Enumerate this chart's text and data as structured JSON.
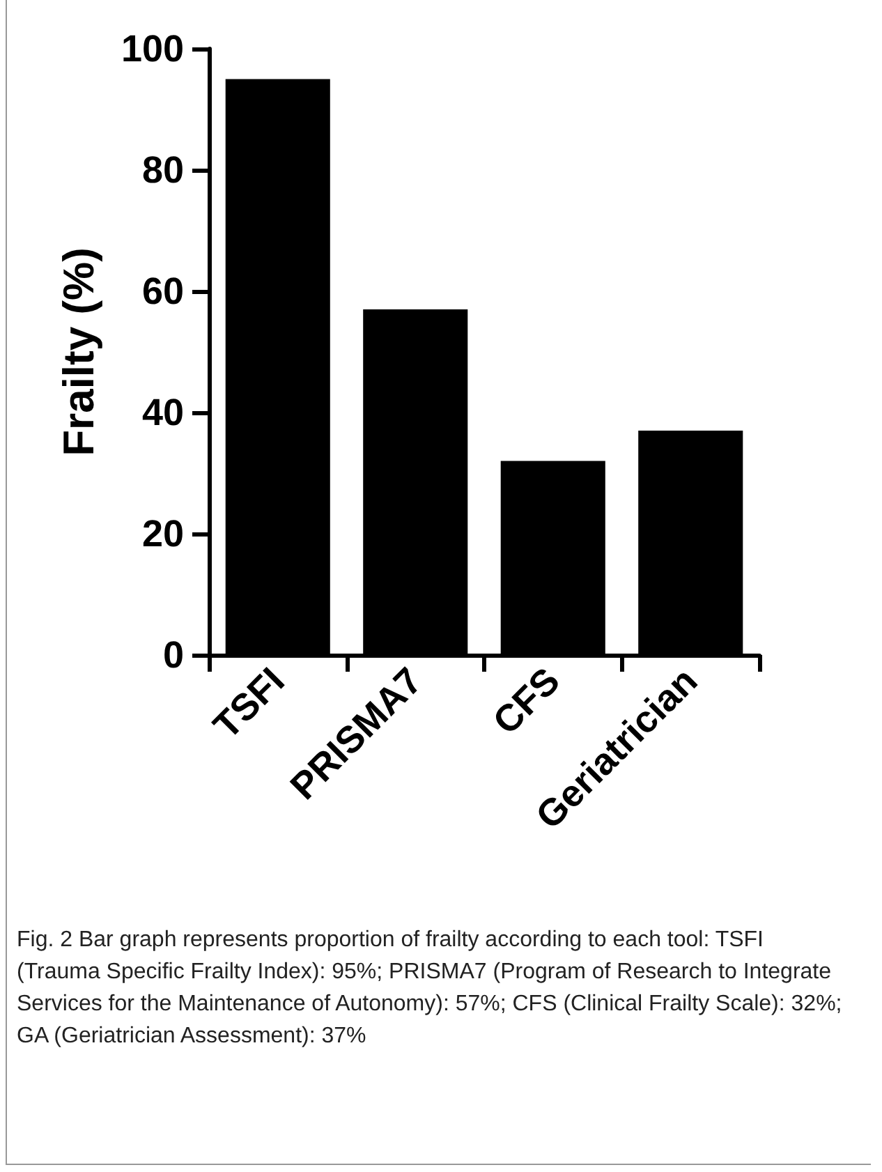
{
  "chart_data": {
    "type": "bar",
    "ylabel": "Frailty (%)",
    "categories": [
      "TSFI",
      "PRISMA7",
      "CFS",
      "Geriatrician"
    ],
    "values": [
      95,
      57,
      32,
      37
    ],
    "color": "#000000",
    "ylim": [
      0,
      100
    ],
    "yticks": [
      0,
      20,
      40,
      60,
      80,
      100
    ],
    "grid": false,
    "annotations": [
      "Fig. 2 Bar graph represents proportion of frailty according to each tool: TSFI (Trauma Specific Frailty Index): 95%; PRISMA7 (Program of Research to Integrate Services for the Maintenance of Autonomy): 57%; CFS (Clinical Frailty Scale): 32%; GA (Geriatrician Assessment): 37%"
    ]
  }
}
